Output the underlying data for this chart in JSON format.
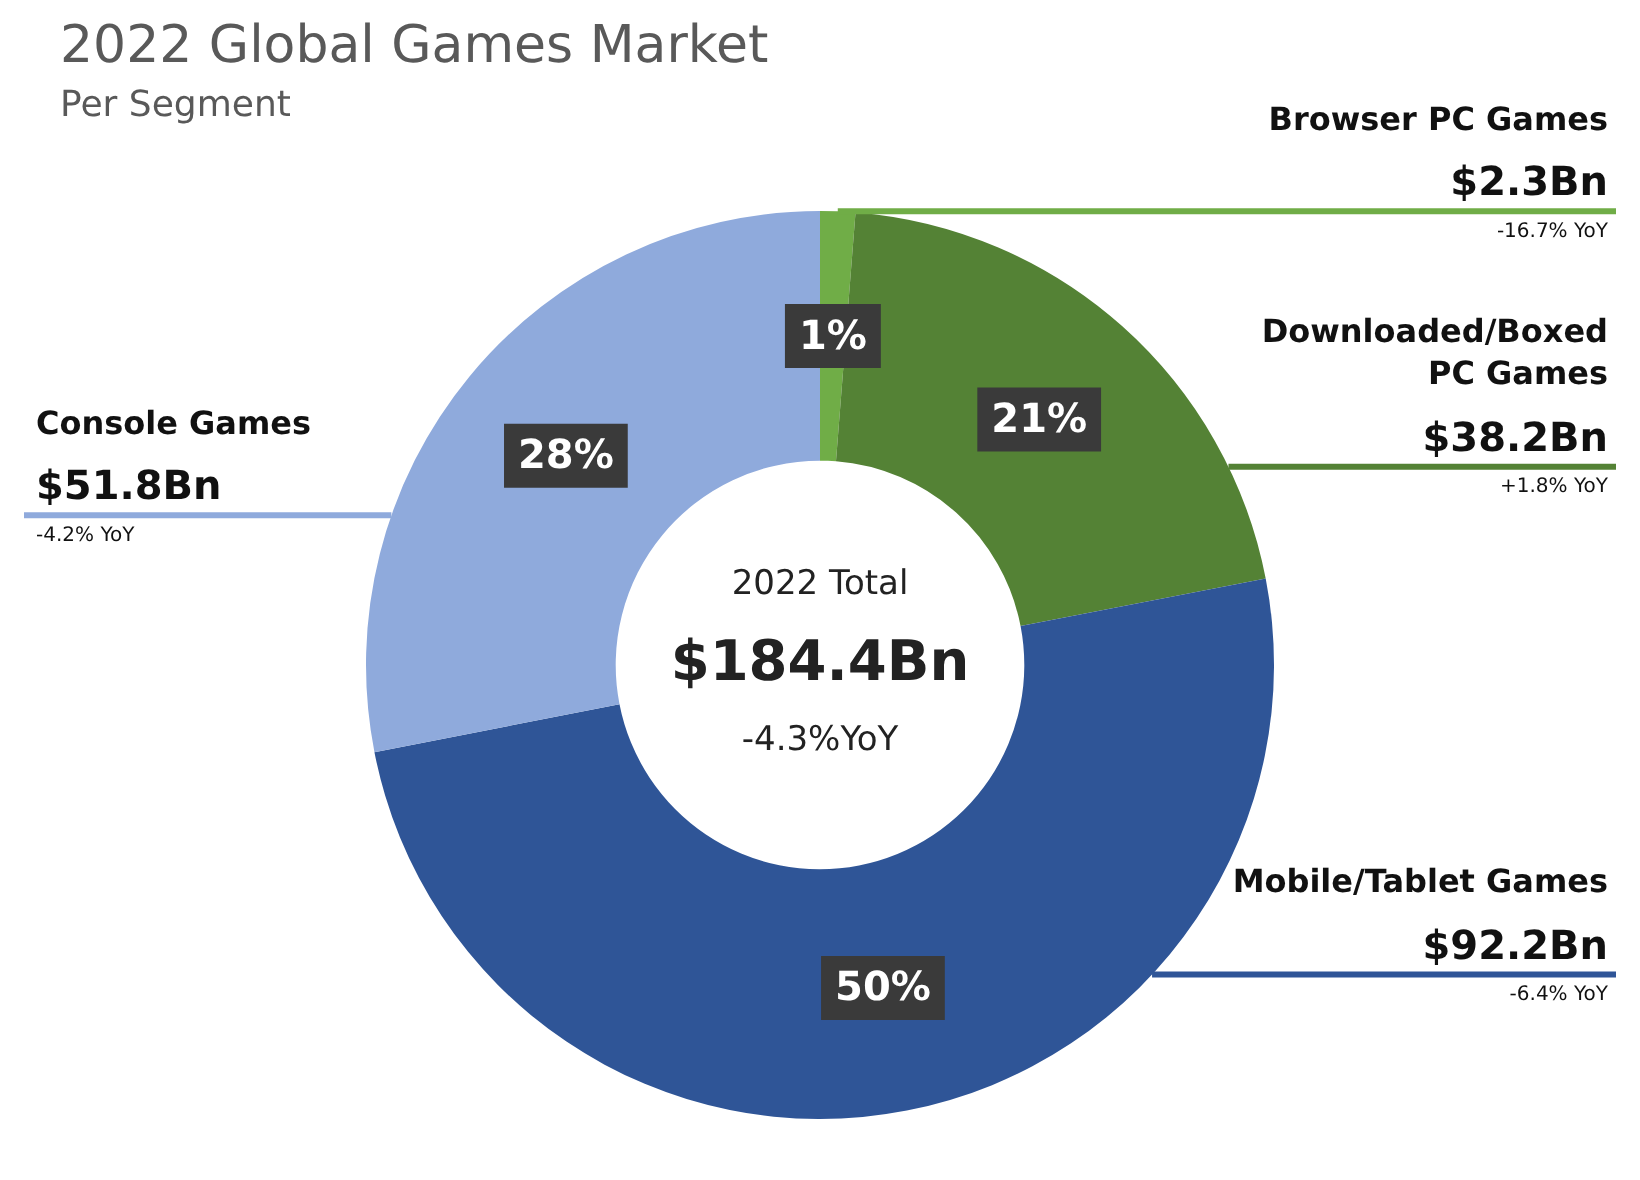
{
  "chart_data": {
    "type": "donut",
    "title": "2022 Global Games Market",
    "subtitle": "Per Segment",
    "categories": [
      "Browser PC Games",
      "Downloaded/Boxed PC Games",
      "Mobile/Tablet Games",
      "Console Games"
    ],
    "values": [
      2.3,
      38.2,
      92.2,
      51.8
    ],
    "colors": [
      "#70ad47",
      "#548235",
      "#2f5597",
      "#8faadc"
    ],
    "value_labels": [
      "$2.3Bn",
      "$38.2Bn",
      "$92.2Bn",
      "$51.8Bn"
    ],
    "legend": false,
    "annotations": [
      "2022 Total",
      "$184.4Bn",
      "-4.3%YoY",
      {
        "text": "1%",
        "x": "Browser PC Games"
      },
      {
        "text": "-16.7% YoY",
        "x": "Browser PC Games"
      },
      {
        "text": "21%",
        "x": "Downloaded/Boxed PC Games"
      },
      {
        "text": "+1.8% YoY",
        "x": "Downloaded/Boxed PC Games"
      },
      {
        "text": "50%",
        "x": "Mobile/Tablet Games"
      },
      {
        "text": "-6.4% YoY",
        "x": "Mobile/Tablet Games"
      },
      {
        "text": "28%",
        "x": "Console Games"
      },
      {
        "text": "-4.2% YoY",
        "x": "Console Games"
      }
    ]
  }
}
